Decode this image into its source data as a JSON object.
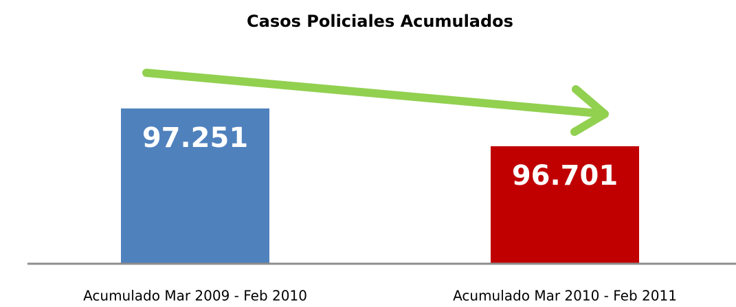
{
  "chart_data": {
    "type": "bar",
    "title": "Casos Policiales Acumulados",
    "categories": [
      "Acumulado Mar 2009 - Feb 2010",
      "Acumulado Mar 2010 - Feb 2011"
    ],
    "values": [
      97251,
      96701
    ],
    "value_labels": [
      "97.251",
      "96.701"
    ],
    "colors": [
      "#4f81bd",
      "#c00000"
    ],
    "ylim": [
      95000,
      97500
    ]
  }
}
